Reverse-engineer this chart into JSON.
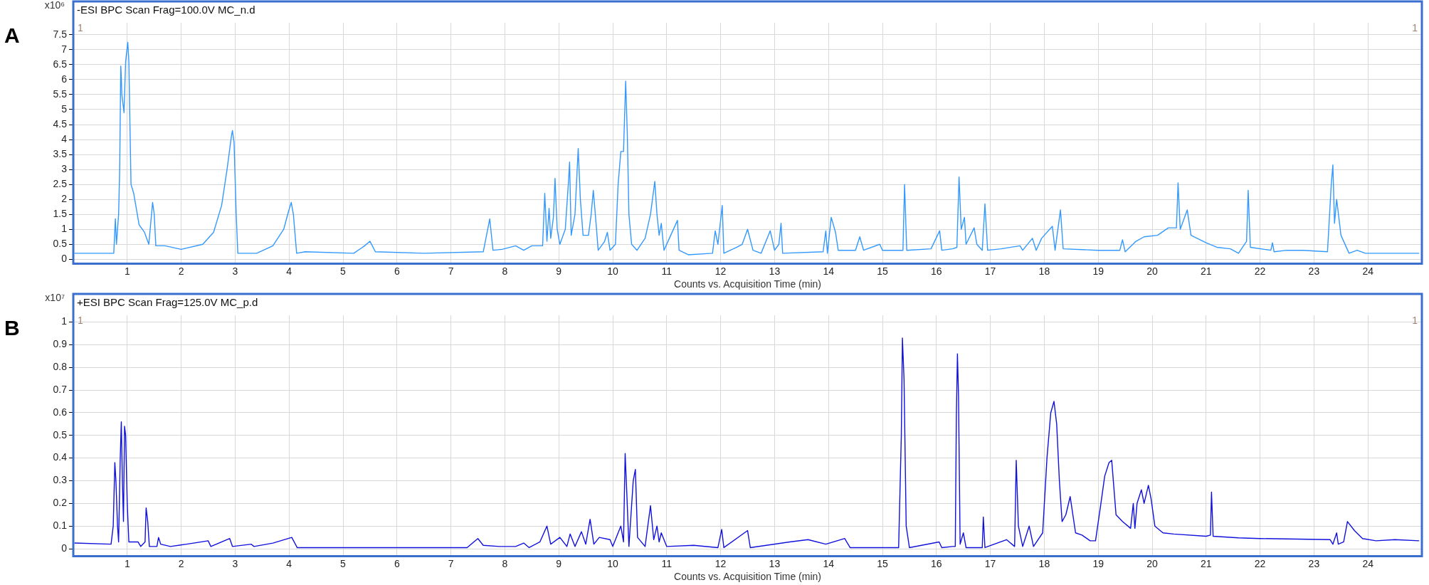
{
  "chart_data": [
    {
      "type": "line",
      "title": "-ESI BPC Scan Frag=100.0V MC_n.d",
      "xlabel": "Counts vs. Acquisition Time (min)",
      "ylabel": "x10⁶",
      "annotations": [
        "A",
        "1",
        "1"
      ],
      "xlim": [
        0,
        25
      ],
      "xticks": [
        1,
        2,
        3,
        4,
        5,
        6,
        7,
        8,
        9,
        10,
        11,
        12,
        13,
        14,
        15,
        16,
        17,
        18,
        19,
        20,
        21,
        22,
        23,
        24
      ],
      "ylim": [
        -0.05,
        7.9
      ],
      "yticks": [
        0,
        0.5,
        1,
        1.5,
        2,
        2.5,
        3,
        3.5,
        4,
        4.5,
        5,
        5.5,
        6,
        6.5,
        7,
        7.5
      ],
      "grid": true,
      "legend": false,
      "marker": "none",
      "series": [
        {
          "color": "#3399ff",
          "x": [
            0.02,
            0.75,
            0.78,
            0.8,
            0.84,
            0.86,
            0.88,
            0.89,
            0.9,
            0.94,
            0.97,
            1.01,
            1.03,
            1.05,
            1.07,
            1.12,
            1.22,
            1.32,
            1.4,
            1.45,
            1.47,
            1.5,
            1.53,
            1.7,
            2.0,
            2.4,
            2.6,
            2.75,
            2.85,
            2.93,
            2.95,
            2.98,
            3.02,
            3.05,
            3.4,
            3.7,
            3.9,
            3.99,
            4.04,
            4.08,
            4.14,
            4.3,
            5.2,
            5.4,
            5.5,
            5.6,
            6.5,
            7.6,
            7.72,
            7.78,
            7.95,
            8.2,
            8.35,
            8.5,
            8.7,
            8.74,
            8.78,
            8.82,
            8.85,
            8.9,
            8.93,
            8.97,
            9.02,
            9.12,
            9.18,
            9.2,
            9.23,
            9.3,
            9.36,
            9.4,
            9.45,
            9.55,
            9.6,
            9.64,
            9.7,
            9.73,
            9.85,
            9.9,
            9.95,
            10.05,
            10.1,
            10.15,
            10.2,
            10.24,
            10.27,
            10.3,
            10.35,
            10.45,
            10.6,
            10.7,
            10.78,
            10.82,
            10.86,
            10.9,
            10.95,
            11.05,
            11.2,
            11.23,
            11.4,
            11.85,
            11.9,
            11.95,
            12.03,
            12.06,
            12.3,
            12.4,
            12.5,
            12.6,
            12.75,
            12.92,
            13.0,
            13.08,
            13.12,
            13.15,
            13.9,
            13.95,
            13.98,
            14.05,
            14.13,
            14.18,
            14.5,
            14.58,
            14.65,
            14.95,
            15.0,
            15.38,
            15.41,
            15.45,
            15.9,
            16.06,
            16.1,
            16.3,
            16.38,
            16.42,
            16.46,
            16.52,
            16.55,
            16.7,
            16.75,
            16.85,
            16.9,
            16.95,
            17.2,
            17.55,
            17.6,
            17.78,
            17.85,
            17.95,
            18.15,
            18.2,
            18.3,
            18.35,
            19.0,
            19.4,
            19.45,
            19.5,
            19.7,
            19.85,
            20.1,
            20.3,
            20.45,
            20.48,
            20.52,
            20.65,
            20.72,
            21.0,
            21.2,
            21.45,
            21.6,
            21.75,
            21.78,
            21.82,
            22.2,
            22.23,
            22.26,
            22.5,
            22.8,
            23.25,
            23.32,
            23.35,
            23.38,
            23.42,
            23.5,
            23.65,
            23.8,
            23.95,
            24.95
          ],
          "values": [
            0.2,
            0.2,
            1.35,
            0.5,
            1.5,
            3.0,
            6.45,
            6.1,
            5.5,
            4.9,
            6.6,
            7.25,
            6.6,
            4.5,
            2.5,
            2.2,
            1.15,
            0.9,
            0.5,
            1.5,
            1.9,
            1.5,
            0.45,
            0.45,
            0.33,
            0.5,
            0.9,
            1.8,
            3.0,
            4.1,
            4.3,
            3.9,
            1.5,
            0.2,
            0.2,
            0.45,
            1.0,
            1.6,
            1.9,
            1.5,
            0.2,
            0.25,
            0.2,
            0.45,
            0.6,
            0.25,
            0.2,
            0.25,
            1.35,
            0.3,
            0.33,
            0.45,
            0.3,
            0.45,
            0.45,
            2.2,
            0.6,
            1.7,
            0.7,
            1.4,
            2.7,
            1.0,
            0.5,
            1.0,
            2.6,
            3.25,
            0.8,
            1.5,
            3.7,
            2.0,
            0.8,
            0.8,
            1.5,
            2.3,
            1.0,
            0.3,
            0.6,
            0.9,
            0.3,
            0.5,
            2.5,
            3.6,
            3.6,
            5.95,
            4.2,
            1.5,
            0.5,
            0.3,
            0.7,
            1.5,
            2.6,
            1.5,
            0.8,
            1.2,
            0.3,
            0.7,
            1.3,
            0.3,
            0.15,
            0.2,
            0.95,
            0.5,
            1.8,
            0.2,
            0.4,
            0.5,
            1.0,
            0.3,
            0.2,
            0.95,
            0.3,
            0.5,
            1.2,
            0.2,
            0.25,
            0.95,
            0.2,
            1.4,
            0.9,
            0.3,
            0.3,
            0.75,
            0.3,
            0.5,
            0.3,
            0.3,
            2.5,
            0.3,
            0.35,
            0.95,
            0.3,
            0.35,
            0.4,
            2.75,
            1.0,
            1.4,
            0.5,
            1.05,
            0.5,
            0.3,
            1.85,
            0.3,
            0.35,
            0.45,
            0.3,
            0.7,
            0.3,
            0.7,
            1.1,
            0.3,
            1.65,
            0.35,
            0.3,
            0.3,
            0.65,
            0.25,
            0.6,
            0.75,
            0.8,
            1.05,
            1.05,
            2.55,
            1.0,
            1.65,
            0.8,
            0.55,
            0.4,
            0.35,
            0.2,
            0.6,
            2.3,
            0.4,
            0.3,
            0.55,
            0.25,
            0.3,
            0.3,
            0.25,
            2.5,
            3.15,
            1.2,
            2.0,
            0.8,
            0.2,
            0.3,
            0.2,
            0.2
          ]
        }
      ]
    },
    {
      "type": "line",
      "title": "+ESI BPC Scan Frag=125.0V MC_p.d",
      "xlabel": "Counts vs. Acquisition Time (min)",
      "ylabel": "x10⁷",
      "annotations": [
        "B",
        "1",
        "1"
      ],
      "xlim": [
        0,
        25
      ],
      "xticks": [
        1,
        2,
        3,
        4,
        5,
        6,
        7,
        8,
        9,
        10,
        11,
        12,
        13,
        14,
        15,
        16,
        17,
        18,
        19,
        20,
        21,
        22,
        23,
        24
      ],
      "ylim": [
        -0.02,
        1.03
      ],
      "yticks": [
        0,
        0.1,
        0.2,
        0.3,
        0.4,
        0.5,
        0.6,
        0.7,
        0.8,
        0.9,
        1
      ],
      "grid": true,
      "legend": false,
      "marker": "none",
      "series": [
        {
          "color": "#1111dd",
          "x": [
            0.02,
            0.7,
            0.74,
            0.77,
            0.79,
            0.82,
            0.84,
            0.87,
            0.89,
            0.91,
            0.93,
            0.95,
            0.97,
            1.0,
            1.03,
            1.15,
            1.2,
            1.25,
            1.33,
            1.35,
            1.38,
            1.41,
            1.55,
            1.58,
            1.62,
            1.8,
            2.1,
            2.5,
            2.55,
            2.9,
            2.95,
            3.3,
            3.35,
            3.7,
            4.05,
            4.15,
            5.5,
            7.3,
            7.5,
            7.6,
            7.9,
            8.2,
            8.35,
            8.45,
            8.65,
            8.78,
            8.85,
            9.02,
            9.15,
            9.21,
            9.3,
            9.42,
            9.5,
            9.58,
            9.65,
            9.75,
            9.95,
            10.0,
            10.15,
            10.2,
            10.23,
            10.26,
            10.3,
            10.38,
            10.42,
            10.46,
            10.6,
            10.7,
            10.76,
            10.82,
            10.86,
            10.9,
            11.0,
            11.5,
            11.95,
            12.02,
            12.06,
            12.5,
            12.55,
            13.28,
            13.62,
            13.95,
            14.3,
            14.4,
            15.3,
            15.35,
            15.37,
            15.4,
            15.44,
            15.5,
            16.05,
            16.1,
            16.3,
            16.35,
            16.37,
            16.39,
            16.41,
            16.44,
            16.5,
            16.55,
            16.85,
            16.87,
            16.9,
            17.3,
            17.45,
            17.48,
            17.52,
            17.6,
            17.72,
            17.8,
            17.97,
            18.05,
            18.12,
            18.18,
            18.23,
            18.28,
            18.33,
            18.4,
            18.48,
            18.58,
            18.7,
            18.85,
            18.95,
            19.05,
            19.12,
            19.2,
            19.25,
            19.33,
            19.45,
            19.6,
            19.65,
            19.68,
            19.72,
            19.8,
            19.85,
            19.93,
            19.98,
            20.05,
            20.2,
            20.4,
            21.0,
            21.08,
            21.1,
            21.13,
            21.6,
            22.0,
            23.3,
            23.35,
            23.42,
            23.45,
            23.55,
            23.62,
            23.75,
            23.9,
            24.15,
            24.5,
            24.95
          ],
          "values": [
            0.025,
            0.02,
            0.1,
            0.38,
            0.3,
            0.1,
            0.03,
            0.4,
            0.56,
            0.3,
            0.12,
            0.54,
            0.5,
            0.2,
            0.03,
            0.03,
            0.03,
            0.01,
            0.03,
            0.18,
            0.12,
            0.01,
            0.01,
            0.05,
            0.02,
            0.01,
            0.02,
            0.035,
            0.01,
            0.045,
            0.01,
            0.02,
            0.01,
            0.025,
            0.05,
            0.005,
            0.005,
            0.005,
            0.045,
            0.015,
            0.01,
            0.01,
            0.025,
            0.005,
            0.03,
            0.1,
            0.02,
            0.05,
            0.01,
            0.065,
            0.01,
            0.075,
            0.02,
            0.13,
            0.02,
            0.05,
            0.04,
            0.01,
            0.1,
            0.03,
            0.42,
            0.25,
            0.01,
            0.3,
            0.35,
            0.05,
            0.01,
            0.19,
            0.04,
            0.1,
            0.03,
            0.07,
            0.01,
            0.015,
            0.005,
            0.085,
            0.005,
            0.08,
            0.005,
            0.03,
            0.04,
            0.02,
            0.045,
            0.005,
            0.005,
            0.5,
            0.93,
            0.75,
            0.1,
            0.005,
            0.03,
            0.005,
            0.01,
            0.01,
            0.58,
            0.86,
            0.68,
            0.02,
            0.07,
            0.005,
            0.005,
            0.14,
            0.005,
            0.04,
            0.01,
            0.39,
            0.1,
            0.01,
            0.1,
            0.01,
            0.07,
            0.4,
            0.6,
            0.65,
            0.55,
            0.3,
            0.12,
            0.15,
            0.23,
            0.07,
            0.06,
            0.035,
            0.035,
            0.2,
            0.32,
            0.38,
            0.39,
            0.15,
            0.12,
            0.09,
            0.2,
            0.09,
            0.2,
            0.26,
            0.2,
            0.28,
            0.22,
            0.1,
            0.07,
            0.065,
            0.055,
            0.06,
            0.25,
            0.055,
            0.048,
            0.045,
            0.04,
            0.02,
            0.07,
            0.02,
            0.03,
            0.12,
            0.08,
            0.045,
            0.035,
            0.04,
            0.035
          ]
        }
      ]
    }
  ]
}
